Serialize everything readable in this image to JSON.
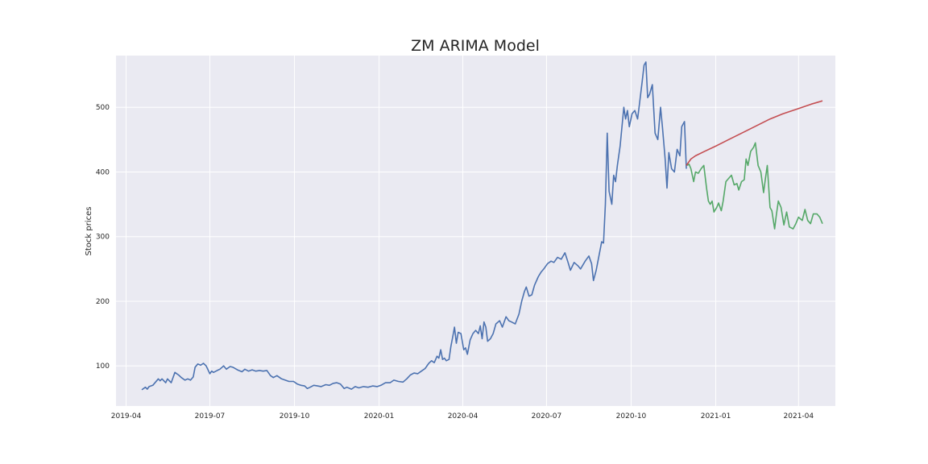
{
  "chart_data": {
    "type": "line",
    "title": "ZM ARIMA Model",
    "xlabel": "",
    "ylabel": "Stock prices",
    "xlim": [
      "2019-03-21",
      "2021-05-11"
    ],
    "ylim": [
      38,
      580
    ],
    "grid": true,
    "x_tick_labels": [
      "2019-04",
      "2019-07",
      "2019-10",
      "2020-01",
      "2020-04",
      "2020-07",
      "2020-10",
      "2021-01",
      "2021-04"
    ],
    "x_tick_dates": [
      "2019-04-01",
      "2019-07-01",
      "2019-10-01",
      "2020-01-01",
      "2020-04-01",
      "2020-07-01",
      "2020-10-01",
      "2021-01-01",
      "2021-04-01"
    ],
    "y_ticks": [
      100,
      200,
      300,
      400,
      500
    ],
    "colors": {
      "series_0": "#4c72b0",
      "series_1": "#55a868",
      "series_2": "#c44e52",
      "plot_bg": "#eaeaf2",
      "grid": "#ffffff"
    },
    "series": [
      {
        "points": [
          [
            "2019-04-18",
            63
          ],
          [
            "2019-04-22",
            67
          ],
          [
            "2019-04-24",
            64
          ],
          [
            "2019-04-26",
            68
          ],
          [
            "2019-04-30",
            70
          ],
          [
            "2019-05-03",
            75
          ],
          [
            "2019-05-06",
            80
          ],
          [
            "2019-05-08",
            77
          ],
          [
            "2019-05-10",
            80
          ],
          [
            "2019-05-14",
            74
          ],
          [
            "2019-05-16",
            80
          ],
          [
            "2019-05-20",
            74
          ],
          [
            "2019-05-24",
            90
          ],
          [
            "2019-05-28",
            86
          ],
          [
            "2019-05-31",
            82
          ],
          [
            "2019-06-04",
            78
          ],
          [
            "2019-06-07",
            80
          ],
          [
            "2019-06-10",
            78
          ],
          [
            "2019-06-13",
            83
          ],
          [
            "2019-06-15",
            98
          ],
          [
            "2019-06-18",
            103
          ],
          [
            "2019-06-21",
            101
          ],
          [
            "2019-06-24",
            104
          ],
          [
            "2019-06-27",
            100
          ],
          [
            "2019-07-01",
            88
          ],
          [
            "2019-07-03",
            92
          ],
          [
            "2019-07-05",
            90
          ],
          [
            "2019-07-09",
            93
          ],
          [
            "2019-07-12",
            95
          ],
          [
            "2019-07-16",
            100
          ],
          [
            "2019-07-19",
            95
          ],
          [
            "2019-07-23",
            99
          ],
          [
            "2019-07-26",
            98
          ],
          [
            "2019-07-31",
            94
          ],
          [
            "2019-08-05",
            91
          ],
          [
            "2019-08-08",
            95
          ],
          [
            "2019-08-12",
            92
          ],
          [
            "2019-08-16",
            94
          ],
          [
            "2019-08-20",
            92
          ],
          [
            "2019-08-24",
            93
          ],
          [
            "2019-08-28",
            92
          ],
          [
            "2019-09-01",
            93
          ],
          [
            "2019-09-05",
            85
          ],
          [
            "2019-09-08",
            82
          ],
          [
            "2019-09-12",
            85
          ],
          [
            "2019-09-17",
            80
          ],
          [
            "2019-09-21",
            78
          ],
          [
            "2019-09-25",
            76
          ],
          [
            "2019-09-30",
            76
          ],
          [
            "2019-10-04",
            72
          ],
          [
            "2019-10-08",
            70
          ],
          [
            "2019-10-12",
            69
          ],
          [
            "2019-10-15",
            65
          ],
          [
            "2019-10-18",
            67
          ],
          [
            "2019-10-22",
            70
          ],
          [
            "2019-10-26",
            69
          ],
          [
            "2019-10-30",
            68
          ],
          [
            "2019-11-04",
            71
          ],
          [
            "2019-11-08",
            70
          ],
          [
            "2019-11-12",
            73
          ],
          [
            "2019-11-16",
            74
          ],
          [
            "2019-11-20",
            72
          ],
          [
            "2019-11-24",
            65
          ],
          [
            "2019-11-27",
            67
          ],
          [
            "2019-12-02",
            64
          ],
          [
            "2019-12-06",
            68
          ],
          [
            "2019-12-10",
            66
          ],
          [
            "2019-12-15",
            68
          ],
          [
            "2019-12-20",
            67
          ],
          [
            "2019-12-25",
            69
          ],
          [
            "2019-12-30",
            68
          ],
          [
            "2020-01-03",
            70
          ],
          [
            "2020-01-08",
            74
          ],
          [
            "2020-01-13",
            74
          ],
          [
            "2020-01-17",
            78
          ],
          [
            "2020-01-22",
            76
          ],
          [
            "2020-01-27",
            75
          ],
          [
            "2020-01-31",
            80
          ],
          [
            "2020-02-04",
            86
          ],
          [
            "2020-02-08",
            89
          ],
          [
            "2020-02-12",
            88
          ],
          [
            "2020-02-16",
            92
          ],
          [
            "2020-02-20",
            96
          ],
          [
            "2020-02-24",
            104
          ],
          [
            "2020-02-27",
            108
          ],
          [
            "2020-03-01",
            105
          ],
          [
            "2020-03-04",
            115
          ],
          [
            "2020-03-06",
            112
          ],
          [
            "2020-03-08",
            125
          ],
          [
            "2020-03-10",
            110
          ],
          [
            "2020-03-12",
            112
          ],
          [
            "2020-03-14",
            108
          ],
          [
            "2020-03-17",
            110
          ],
          [
            "2020-03-19",
            130
          ],
          [
            "2020-03-21",
            145
          ],
          [
            "2020-03-23",
            160
          ],
          [
            "2020-03-25",
            135
          ],
          [
            "2020-03-27",
            152
          ],
          [
            "2020-03-30",
            150
          ],
          [
            "2020-04-02",
            125
          ],
          [
            "2020-04-04",
            128
          ],
          [
            "2020-04-06",
            118
          ],
          [
            "2020-04-09",
            140
          ],
          [
            "2020-04-12",
            150
          ],
          [
            "2020-04-15",
            155
          ],
          [
            "2020-04-18",
            150
          ],
          [
            "2020-04-20",
            162
          ],
          [
            "2020-04-22",
            142
          ],
          [
            "2020-04-24",
            168
          ],
          [
            "2020-04-26",
            160
          ],
          [
            "2020-04-28",
            138
          ],
          [
            "2020-05-01",
            142
          ],
          [
            "2020-05-04",
            150
          ],
          [
            "2020-05-07",
            165
          ],
          [
            "2020-05-11",
            170
          ],
          [
            "2020-05-14",
            160
          ],
          [
            "2020-05-18",
            176
          ],
          [
            "2020-05-21",
            170
          ],
          [
            "2020-05-24",
            168
          ],
          [
            "2020-05-28",
            165
          ],
          [
            "2020-06-01",
            180
          ],
          [
            "2020-06-04",
            200
          ],
          [
            "2020-06-07",
            215
          ],
          [
            "2020-06-09",
            222
          ],
          [
            "2020-06-12",
            208
          ],
          [
            "2020-06-15",
            210
          ],
          [
            "2020-06-18",
            225
          ],
          [
            "2020-06-22",
            238
          ],
          [
            "2020-06-25",
            245
          ],
          [
            "2020-06-28",
            250
          ],
          [
            "2020-07-02",
            258
          ],
          [
            "2020-07-06",
            262
          ],
          [
            "2020-07-09",
            260
          ],
          [
            "2020-07-13",
            268
          ],
          [
            "2020-07-17",
            265
          ],
          [
            "2020-07-21",
            275
          ],
          [
            "2020-07-24",
            262
          ],
          [
            "2020-07-27",
            248
          ],
          [
            "2020-07-31",
            260
          ],
          [
            "2020-08-04",
            255
          ],
          [
            "2020-08-07",
            250
          ],
          [
            "2020-08-12",
            262
          ],
          [
            "2020-08-16",
            270
          ],
          [
            "2020-08-19",
            258
          ],
          [
            "2020-08-21",
            232
          ],
          [
            "2020-08-24",
            248
          ],
          [
            "2020-08-27",
            270
          ],
          [
            "2020-08-30",
            292
          ],
          [
            "2020-09-01",
            290
          ],
          [
            "2020-09-03",
            350
          ],
          [
            "2020-09-05",
            460
          ],
          [
            "2020-09-07",
            370
          ],
          [
            "2020-09-10",
            350
          ],
          [
            "2020-09-12",
            395
          ],
          [
            "2020-09-14",
            385
          ],
          [
            "2020-09-16",
            410
          ],
          [
            "2020-09-19",
            440
          ],
          [
            "2020-09-21",
            470
          ],
          [
            "2020-09-23",
            500
          ],
          [
            "2020-09-25",
            482
          ],
          [
            "2020-09-27",
            495
          ],
          [
            "2020-09-29",
            470
          ],
          [
            "2020-10-02",
            490
          ],
          [
            "2020-10-05",
            495
          ],
          [
            "2020-10-08",
            482
          ],
          [
            "2020-10-10",
            505
          ],
          [
            "2020-10-13",
            540
          ],
          [
            "2020-10-15",
            565
          ],
          [
            "2020-10-17",
            570
          ],
          [
            "2020-10-19",
            515
          ],
          [
            "2020-10-21",
            520
          ],
          [
            "2020-10-24",
            535
          ],
          [
            "2020-10-27",
            460
          ],
          [
            "2020-10-30",
            450
          ],
          [
            "2020-11-02",
            500
          ],
          [
            "2020-11-04",
            470
          ],
          [
            "2020-11-07",
            420
          ],
          [
            "2020-11-09",
            375
          ],
          [
            "2020-11-11",
            430
          ],
          [
            "2020-11-14",
            405
          ],
          [
            "2020-11-17",
            400
          ],
          [
            "2020-11-20",
            435
          ],
          [
            "2020-11-23",
            425
          ],
          [
            "2020-11-25",
            470
          ],
          [
            "2020-11-28",
            478
          ],
          [
            "2020-11-30",
            405
          ]
        ]
      },
      {
        "points": [
          [
            "2020-12-01",
            410
          ],
          [
            "2020-12-03",
            412
          ],
          [
            "2020-12-05",
            405
          ],
          [
            "2020-12-08",
            385
          ],
          [
            "2020-12-10",
            400
          ],
          [
            "2020-12-13",
            398
          ],
          [
            "2020-12-16",
            405
          ],
          [
            "2020-12-19",
            410
          ],
          [
            "2020-12-22",
            375
          ],
          [
            "2020-12-24",
            355
          ],
          [
            "2020-12-26",
            350
          ],
          [
            "2020-12-28",
            355
          ],
          [
            "2020-12-30",
            338
          ],
          [
            "2021-01-02",
            345
          ],
          [
            "2021-01-04",
            352
          ],
          [
            "2021-01-07",
            340
          ],
          [
            "2021-01-09",
            355
          ],
          [
            "2021-01-12",
            385
          ],
          [
            "2021-01-15",
            390
          ],
          [
            "2021-01-18",
            395
          ],
          [
            "2021-01-21",
            380
          ],
          [
            "2021-01-24",
            382
          ],
          [
            "2021-01-26",
            372
          ],
          [
            "2021-01-29",
            385
          ],
          [
            "2021-02-01",
            388
          ],
          [
            "2021-02-03",
            420
          ],
          [
            "2021-02-05",
            410
          ],
          [
            "2021-02-08",
            432
          ],
          [
            "2021-02-11",
            438
          ],
          [
            "2021-02-13",
            445
          ],
          [
            "2021-02-16",
            410
          ],
          [
            "2021-02-19",
            400
          ],
          [
            "2021-02-22",
            368
          ],
          [
            "2021-02-24",
            390
          ],
          [
            "2021-02-26",
            410
          ],
          [
            "2021-03-01",
            345
          ],
          [
            "2021-03-03",
            340
          ],
          [
            "2021-03-06",
            312
          ],
          [
            "2021-03-08",
            335
          ],
          [
            "2021-03-10",
            355
          ],
          [
            "2021-03-13",
            345
          ],
          [
            "2021-03-16",
            318
          ],
          [
            "2021-03-19",
            338
          ],
          [
            "2021-03-22",
            315
          ],
          [
            "2021-03-26",
            312
          ],
          [
            "2021-03-29",
            320
          ],
          [
            "2021-04-01",
            330
          ],
          [
            "2021-04-05",
            325
          ],
          [
            "2021-04-08",
            342
          ],
          [
            "2021-04-11",
            325
          ],
          [
            "2021-04-14",
            320
          ],
          [
            "2021-04-17",
            335
          ],
          [
            "2021-04-21",
            335
          ],
          [
            "2021-04-24",
            330
          ],
          [
            "2021-04-27",
            320
          ]
        ]
      },
      {
        "points": [
          [
            "2020-11-30",
            410
          ],
          [
            "2020-12-05",
            420
          ],
          [
            "2020-12-10",
            425
          ],
          [
            "2020-12-20",
            432
          ],
          [
            "2021-01-01",
            440
          ],
          [
            "2021-01-15",
            450
          ],
          [
            "2021-02-01",
            462
          ],
          [
            "2021-02-15",
            472
          ],
          [
            "2021-03-01",
            482
          ],
          [
            "2021-03-15",
            490
          ],
          [
            "2021-04-01",
            498
          ],
          [
            "2021-04-15",
            505
          ],
          [
            "2021-04-27",
            510
          ]
        ]
      }
    ]
  }
}
